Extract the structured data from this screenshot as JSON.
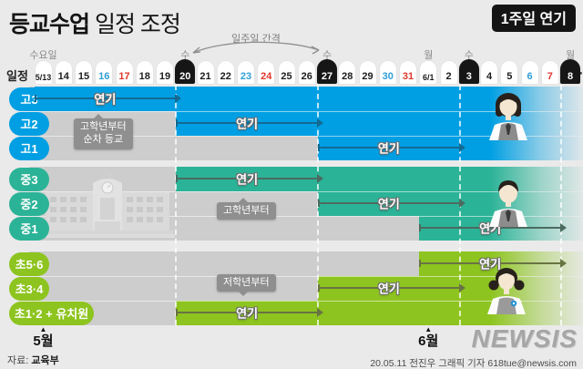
{
  "header": {
    "title_bold": "등교수업",
    "title_rest": " 일정 조정",
    "badge": "1주일 연기",
    "interval_label": "일주일 간격"
  },
  "timeline": {
    "axis_label": "일정",
    "ellipsis": "⋯",
    "weekday_labels": [
      {
        "text": "수요일",
        "date_index": 0
      },
      {
        "text": "수",
        "date_index": 7
      },
      {
        "text": "수",
        "date_index": 14
      },
      {
        "text": "월",
        "date_index": 19
      },
      {
        "text": "수",
        "date_index": 21
      },
      {
        "text": "월",
        "date_index": 26
      }
    ],
    "dates": [
      {
        "label": "5/13",
        "type": "normal"
      },
      {
        "label": "14",
        "type": "normal"
      },
      {
        "label": "15",
        "type": "normal"
      },
      {
        "label": "16",
        "type": "saturday"
      },
      {
        "label": "17",
        "type": "sunday"
      },
      {
        "label": "18",
        "type": "normal"
      },
      {
        "label": "19",
        "type": "normal"
      },
      {
        "label": "20",
        "type": "key"
      },
      {
        "label": "21",
        "type": "normal"
      },
      {
        "label": "22",
        "type": "normal"
      },
      {
        "label": "23",
        "type": "saturday"
      },
      {
        "label": "24",
        "type": "sunday"
      },
      {
        "label": "25",
        "type": "normal"
      },
      {
        "label": "26",
        "type": "normal"
      },
      {
        "label": "27",
        "type": "key"
      },
      {
        "label": "28",
        "type": "normal"
      },
      {
        "label": "29",
        "type": "normal"
      },
      {
        "label": "30",
        "type": "saturday"
      },
      {
        "label": "31",
        "type": "sunday"
      },
      {
        "label": "6/1",
        "type": "normal"
      },
      {
        "label": "2",
        "type": "normal"
      },
      {
        "label": "3",
        "type": "key"
      },
      {
        "label": "4",
        "type": "normal"
      },
      {
        "label": "5",
        "type": "normal"
      },
      {
        "label": "6",
        "type": "saturday"
      },
      {
        "label": "7",
        "type": "sunday"
      },
      {
        "label": "8",
        "type": "key"
      }
    ]
  },
  "groups": [
    {
      "id": "high-school",
      "bar_color": "#009fe3",
      "arrow_color": "#136a93",
      "note_lines": [
        "고학년부터",
        "순차 등교"
      ],
      "rows": [
        {
          "label": "고3",
          "start_index": 0,
          "arrow": {
            "from": 0,
            "to": 7,
            "label": "연기"
          }
        },
        {
          "label": "고2",
          "start_index": 7,
          "arrow": {
            "from": 7,
            "to": 14,
            "label": "연기"
          }
        },
        {
          "label": "고1",
          "start_index": 14,
          "arrow": {
            "from": 14,
            "to": 21,
            "label": "연기"
          }
        }
      ]
    },
    {
      "id": "middle-school",
      "bar_color": "#2bb397",
      "arrow_color": "#4b6b60",
      "note_lines": [
        "고학년부터"
      ],
      "rows": [
        {
          "label": "중3",
          "start_index": 7,
          "arrow": {
            "from": 7,
            "to": 14,
            "label": "연기"
          }
        },
        {
          "label": "중2",
          "start_index": 14,
          "arrow": {
            "from": 14,
            "to": 21,
            "label": "연기"
          }
        },
        {
          "label": "중1",
          "start_index": 19,
          "arrow": {
            "from": 19,
            "to": 26,
            "label": "연기"
          }
        }
      ]
    },
    {
      "id": "elementary",
      "bar_color": "#8dc41f",
      "arrow_color": "#687342",
      "note_lines": [
        "저학년부터"
      ],
      "rows": [
        {
          "label": "초5·6",
          "start_index": 19,
          "arrow": {
            "from": 19,
            "to": 26,
            "label": "연기"
          }
        },
        {
          "label": "초3·4",
          "start_index": 14,
          "arrow": {
            "from": 14,
            "to": 21,
            "label": "연기"
          }
        },
        {
          "label": "초1·2 + 유치원",
          "start_index": 7,
          "wide": true,
          "arrow": {
            "from": 7,
            "to": 14,
            "label": "연기"
          }
        }
      ]
    }
  ],
  "footer": {
    "marker_icon": "▲",
    "month_markers": [
      {
        "label": "5월",
        "date_index": 0
      },
      {
        "label": "6월",
        "date_index": 19
      }
    ],
    "source_prefix": "자료:",
    "source": "교육부",
    "credit": "20.05.11 전진우 그래픽 기자 618tue@newsis.com",
    "logo": "NEWSIS"
  },
  "colors": {
    "background": "#eaeaea",
    "band_gray": "#cdcdcd",
    "high_school_blue": "#009fe3",
    "middle_school_teal": "#2bb397",
    "elementary_green": "#8dc41f",
    "key_date_black": "#161616",
    "saturday_blue": "#2f9fd6",
    "sunday_red": "#e0362c",
    "tooltip_gray": "#8f8f8f"
  },
  "chart_data": {
    "type": "gantt-timeline",
    "title": "등교수업 일정 조정",
    "annotation": "1주일 연기",
    "arrow_label": "연기",
    "x_unit": "date",
    "x_ticks": [
      "5/13",
      "14",
      "15",
      "16",
      "17",
      "18",
      "19",
      "20",
      "21",
      "22",
      "23",
      "24",
      "25",
      "26",
      "27",
      "28",
      "29",
      "30",
      "31",
      "6/1",
      "2",
      "3",
      "4",
      "5",
      "6",
      "7",
      "8"
    ],
    "saturdays": [
      "16",
      "23",
      "30",
      "6"
    ],
    "sundays": [
      "17",
      "24",
      "31",
      "7"
    ],
    "key_dates": [
      "5/20",
      "5/27",
      "6/3",
      "6/8"
    ],
    "rows": [
      {
        "label": "고3",
        "original": "5/13",
        "postponed_to": "5/20"
      },
      {
        "label": "고2",
        "original": "5/20",
        "postponed_to": "5/27"
      },
      {
        "label": "고1",
        "original": "5/27",
        "postponed_to": "6/3"
      },
      {
        "label": "중3",
        "original": "5/20",
        "postponed_to": "5/27"
      },
      {
        "label": "중2",
        "original": "5/27",
        "postponed_to": "6/3"
      },
      {
        "label": "중1",
        "original": "6/1",
        "postponed_to": "6/8"
      },
      {
        "label": "초5·6",
        "original": "6/1",
        "postponed_to": "6/8"
      },
      {
        "label": "초3·4",
        "original": "5/27",
        "postponed_to": "6/3"
      },
      {
        "label": "초1·2 + 유치원",
        "original": "5/20",
        "postponed_to": "5/27"
      }
    ],
    "notes": [
      "고학년부터 순차 등교",
      "고학년부터",
      "저학년부터"
    ],
    "source": "자료: 교육부"
  }
}
